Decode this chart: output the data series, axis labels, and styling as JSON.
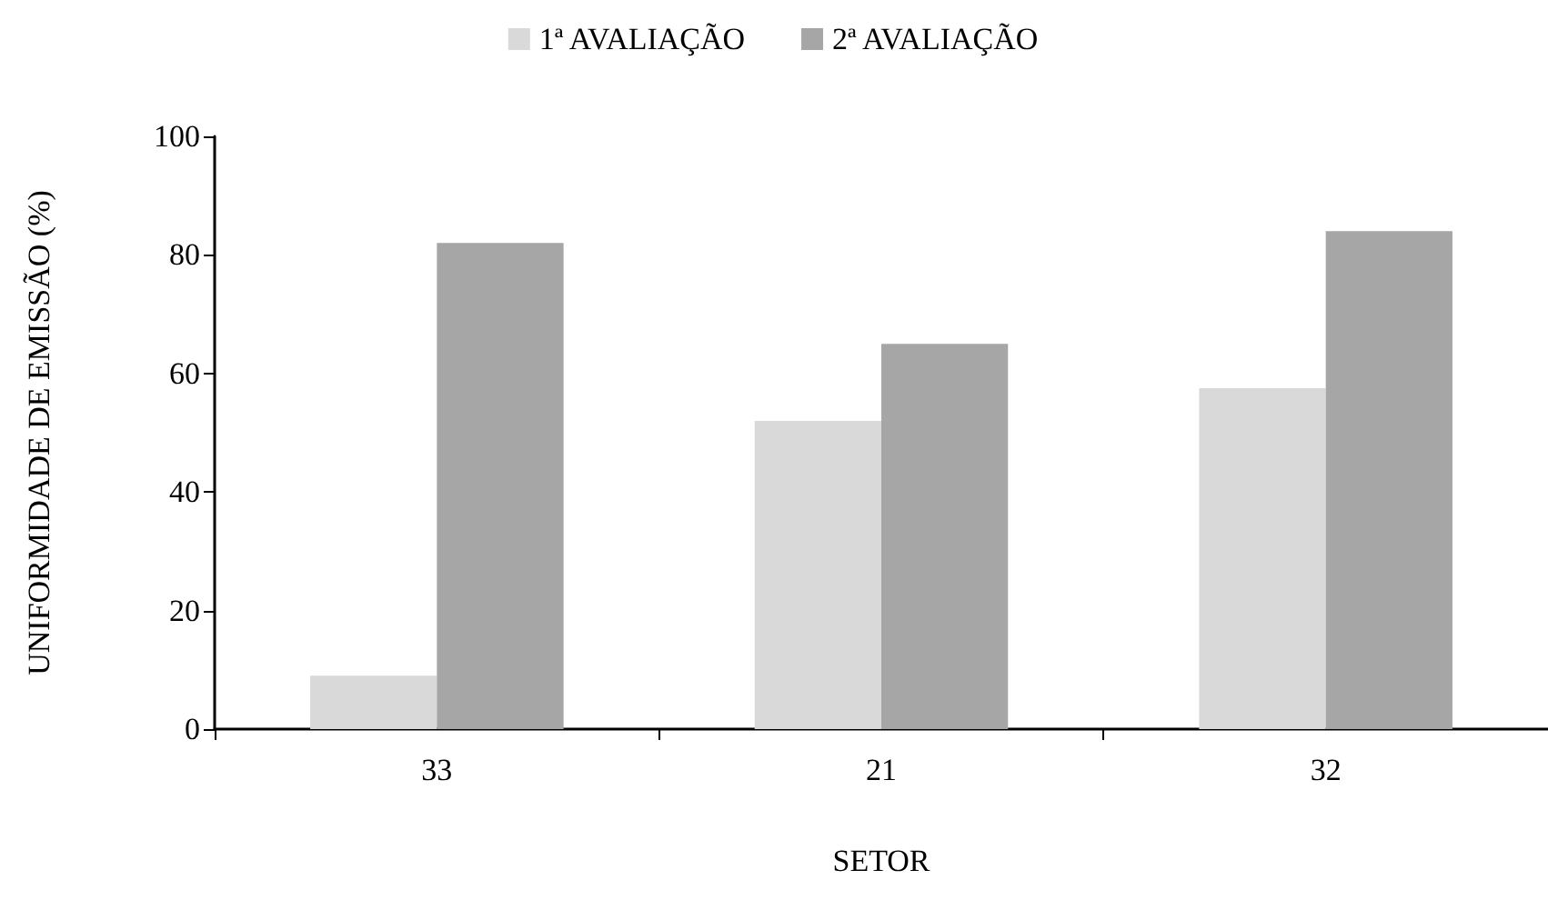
{
  "chart_data": {
    "type": "bar",
    "xlabel": "SETOR",
    "ylabel": "UNIFORMIDADE DE EMISSÃO (%)",
    "categories": [
      "33",
      "21",
      "32"
    ],
    "series": [
      {
        "name": "1ª AVALIAÇÃO",
        "color": "#d9d9d9",
        "values": [
          9,
          52,
          57.5
        ]
      },
      {
        "name": "2ª AVALIAÇÃO",
        "color": "#a6a6a6",
        "values": [
          82,
          65,
          84
        ]
      }
    ],
    "ylim": [
      0,
      100
    ],
    "yticks": [
      0,
      20,
      40,
      60,
      80,
      100
    ],
    "legend": "top"
  }
}
